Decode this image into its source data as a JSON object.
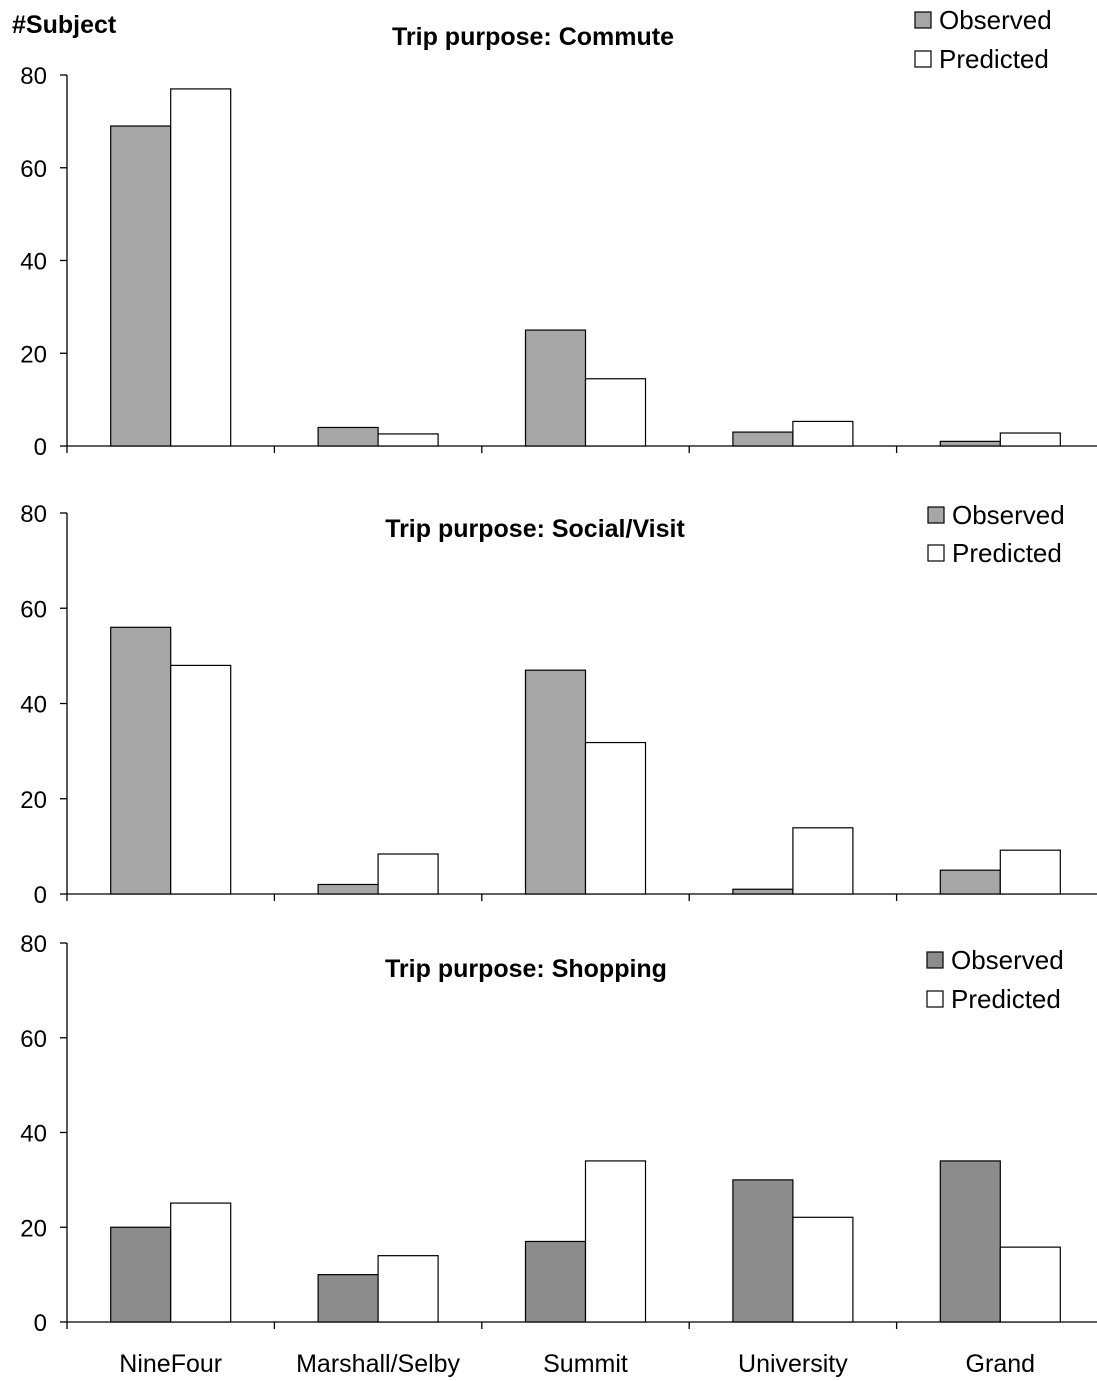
{
  "ylabel": "#Subject",
  "chart_data": [
    {
      "type": "bar",
      "title": "Trip purpose: Commute",
      "categories": [
        "NineFour",
        "Marshall/Selby",
        "Summit",
        "University",
        "Grand"
      ],
      "series": [
        {
          "name": "Observed",
          "values": [
            69,
            4,
            25,
            3,
            1
          ],
          "color": "#a6a6a6"
        },
        {
          "name": "Predicted",
          "values": [
            77,
            2.6,
            14.5,
            5.3,
            2.8
          ],
          "color": "#ffffff"
        }
      ],
      "ylim": [
        0,
        80
      ],
      "yticks": [
        0,
        20,
        40,
        60,
        80
      ],
      "legend": "top-right"
    },
    {
      "type": "bar",
      "title": "Trip purpose: Social/Visit",
      "categories": [
        "NineFour",
        "Marshall/Selby",
        "Summit",
        "University",
        "Grand"
      ],
      "series": [
        {
          "name": "Observed",
          "values": [
            56,
            2,
            47,
            1,
            5
          ],
          "color": "#a6a6a6"
        },
        {
          "name": "Predicted",
          "values": [
            48,
            8.4,
            31.8,
            13.9,
            9.2
          ],
          "color": "#ffffff"
        }
      ],
      "ylim": [
        0,
        80
      ],
      "yticks": [
        0,
        20,
        40,
        60,
        80
      ],
      "legend": "top-right"
    },
    {
      "type": "bar",
      "title": "Trip purpose: Shopping",
      "categories": [
        "NineFour",
        "Marshall/Selby",
        "Summit",
        "University",
        "Grand"
      ],
      "series": [
        {
          "name": "Observed",
          "values": [
            20,
            10,
            17,
            30,
            34
          ],
          "color": "#8c8c8c"
        },
        {
          "name": "Predicted",
          "values": [
            25.1,
            14,
            34,
            22.1,
            15.8
          ],
          "color": "#ffffff"
        }
      ],
      "ylim": [
        0,
        80
      ],
      "yticks": [
        0,
        20,
        40,
        60,
        80
      ],
      "legend": "top-right"
    }
  ]
}
